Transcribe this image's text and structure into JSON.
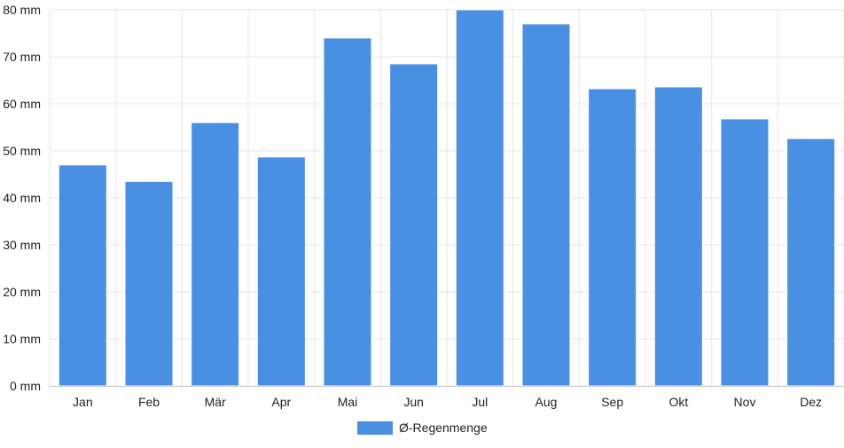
{
  "chart_data": {
    "type": "bar",
    "categories": [
      "Jan",
      "Feb",
      "Mär",
      "Apr",
      "Mai",
      "Jun",
      "Jul",
      "Aug",
      "Sep",
      "Okt",
      "Nov",
      "Dez"
    ],
    "series": [
      {
        "name": "Ø-Regenmenge",
        "values": [
          47.0,
          43.5,
          56.0,
          48.7,
          74.0,
          68.5,
          80.0,
          77.0,
          63.2,
          63.6,
          56.8,
          52.6
        ],
        "color": "#4a90e2"
      }
    ],
    "y_ticks": [
      "0 mm",
      "10 mm",
      "20 mm",
      "30 mm",
      "40 mm",
      "50 mm",
      "60 mm",
      "70 mm",
      "80 mm"
    ],
    "ylim": [
      0,
      80
    ],
    "y_unit": "mm",
    "grid": true,
    "legend_position": "bottom",
    "colors": {
      "bar": "#4a90e2",
      "grid": "#e6e6e6",
      "axis": "#cccccc"
    }
  }
}
